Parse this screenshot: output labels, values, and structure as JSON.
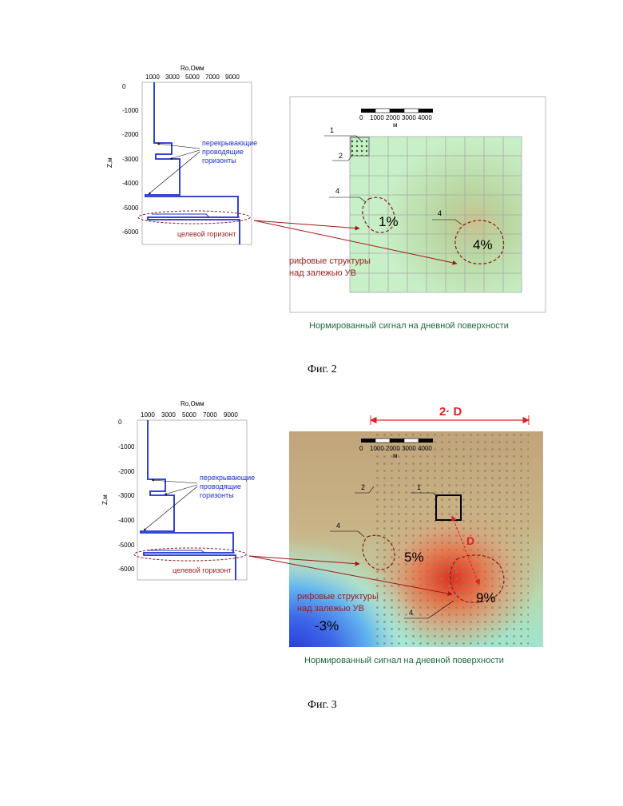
{
  "fig2": {
    "caption": "Фиг. 2",
    "log": {
      "xlabel": "Ro,Омм",
      "xticks": [
        "1000",
        "3000",
        "5000",
        "7000",
        "9000"
      ],
      "ylabel": "Z,м",
      "yticks": [
        "0",
        "-1000",
        "-2000",
        "-3000",
        "-4000",
        "-5000",
        "-6000"
      ],
      "note_overlap": [
        "перекрывающие",
        "проводящие",
        "горизонты"
      ],
      "note_target": "целевой горизонт"
    },
    "scale": {
      "ticks": [
        "0",
        "1000",
        "2000",
        "3000",
        "4000"
      ],
      "unit": "м"
    },
    "labels": {
      "a": "1",
      "b": "2",
      "c": "4",
      "d": "4"
    },
    "values": {
      "left": "1%",
      "right": "4%"
    },
    "reef_note": [
      "рифовые структуры",
      "над залежью УВ"
    ],
    "map_caption": "Нормированный сигнал на дневной поверхности"
  },
  "fig3": {
    "caption": "Фиг. 3",
    "span_label": "2· D",
    "dist_label": "D",
    "log": {
      "xlabel": "Ro,Омм",
      "xticks": [
        "1000",
        "3000",
        "5000",
        "7000",
        "9000"
      ],
      "ylabel": "Z,м",
      "yticks": [
        "0",
        "-1000",
        "-2000",
        "-3000",
        "-4000",
        "-5000",
        "-6000"
      ],
      "note_overlap": [
        "перекрывающие",
        "проводящие",
        "горизонты"
      ],
      "note_target": "целевой горизонт"
    },
    "scale": {
      "ticks": [
        "0",
        "1000",
        "2000",
        "3000",
        "4000"
      ],
      "unit": "м"
    },
    "labels": {
      "a": "1",
      "b": "2",
      "c": "4",
      "d": "4"
    },
    "values": {
      "left": "5%",
      "right": "9%",
      "low": "-3%"
    },
    "reef_note": [
      "рифовые структуры",
      "над залежью УВ"
    ],
    "map_caption": "Нормированный сигнал на дневной поверхности"
  },
  "colors": {
    "curve": "#1a2fd0",
    "dashed": "#8b1a1a",
    "arrow": "#a01818",
    "grid_green": "#c8f0c8",
    "span_red": "#e02020",
    "caption_green": "#1e6b3a"
  }
}
